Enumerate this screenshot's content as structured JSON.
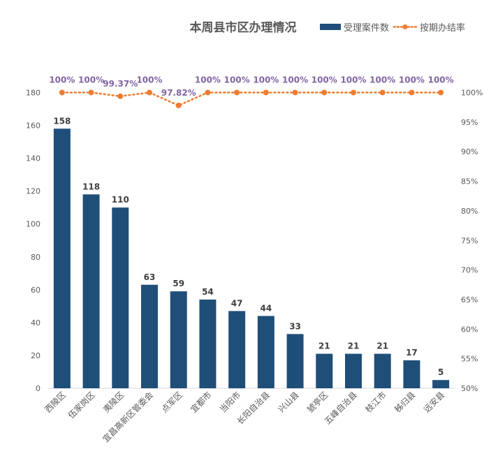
{
  "chart_data": {
    "type": "bar",
    "title": "本周县市区办理情况",
    "categories": [
      "西陵区",
      "伍家岗区",
      "夷陵区",
      "宜昌高新区管委会",
      "点军区",
      "宜都市",
      "当阳市",
      "长阳自治县",
      "兴山县",
      "猇亭区",
      "五峰自治县",
      "枝江市",
      "秭归县",
      "远安县"
    ],
    "series": [
      {
        "name": "受理案件数",
        "kind": "bar",
        "axis": "left",
        "color": "#1f4e79",
        "values": [
          158,
          118,
          110,
          63,
          59,
          54,
          47,
          44,
          33,
          21,
          21,
          21,
          17,
          5
        ],
        "labels": [
          "158",
          "118",
          "110",
          "63",
          "59",
          "54",
          "47",
          "44",
          "33",
          "21",
          "21",
          "21",
          "17",
          "5"
        ]
      },
      {
        "name": "按期办结率",
        "kind": "line",
        "axis": "right",
        "color": "#ed7d31",
        "values": [
          100,
          100,
          99.37,
          100,
          97.82,
          100,
          100,
          100,
          100,
          100,
          100,
          100,
          100,
          100
        ],
        "labels": [
          "100%",
          "100%",
          "99.37%",
          "100%",
          "97.82%",
          "100%",
          "100%",
          "100%",
          "100%",
          "100%",
          "100%",
          "100%",
          "100%",
          "100%"
        ]
      }
    ],
    "y_left": {
      "min": 0,
      "max": 180,
      "ticks": [
        "0",
        "20",
        "40",
        "60",
        "80",
        "100",
        "120",
        "140",
        "160",
        "180"
      ]
    },
    "y_right": {
      "min": 50,
      "max": 100,
      "ticks": [
        "50%",
        "55%",
        "60%",
        "65%",
        "70%",
        "75%",
        "80%",
        "85%",
        "90%",
        "95%",
        "100%"
      ]
    },
    "legend_position": "top-right",
    "grid": false
  }
}
